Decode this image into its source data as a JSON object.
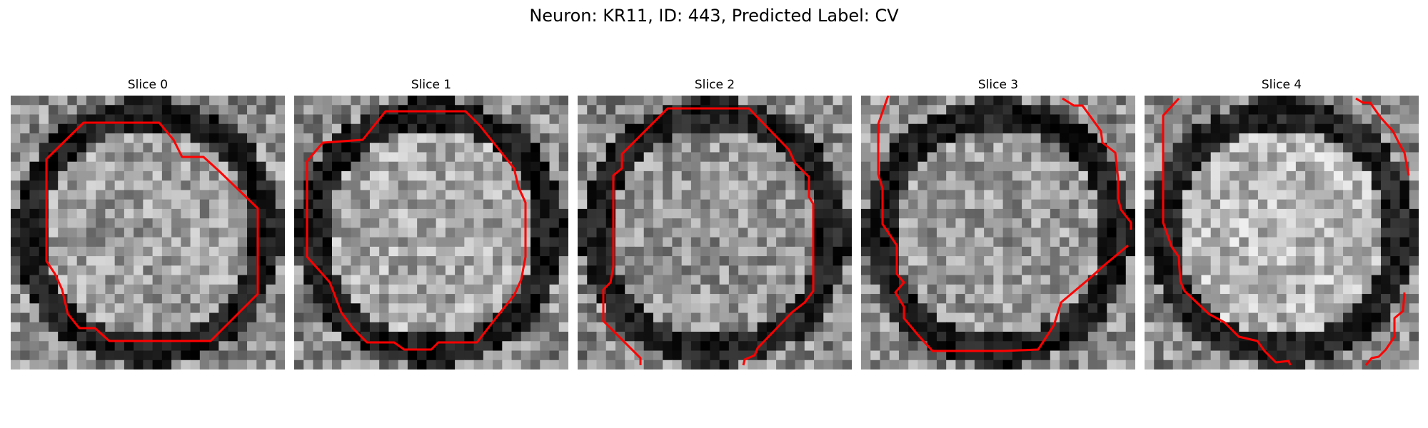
{
  "title": "Neuron: KR11, ID: 443, Predicted Label: CV",
  "contour_color": "#ff0000",
  "colormap": "grayscale",
  "panels": [
    {
      "label": "Slice 0",
      "seed": 11,
      "bright": 0.62,
      "ring": 0.9
    },
    {
      "label": "Slice 1",
      "seed": 23,
      "bright": 0.66,
      "ring": 0.95
    },
    {
      "label": "Slice 2",
      "seed": 37,
      "bright": 0.58,
      "ring": 0.8
    },
    {
      "label": "Slice 3",
      "seed": 41,
      "bright": 0.6,
      "ring": 0.95
    },
    {
      "label": "Slice 4",
      "seed": 53,
      "bright": 0.72,
      "ring": 0.7
    }
  ]
}
